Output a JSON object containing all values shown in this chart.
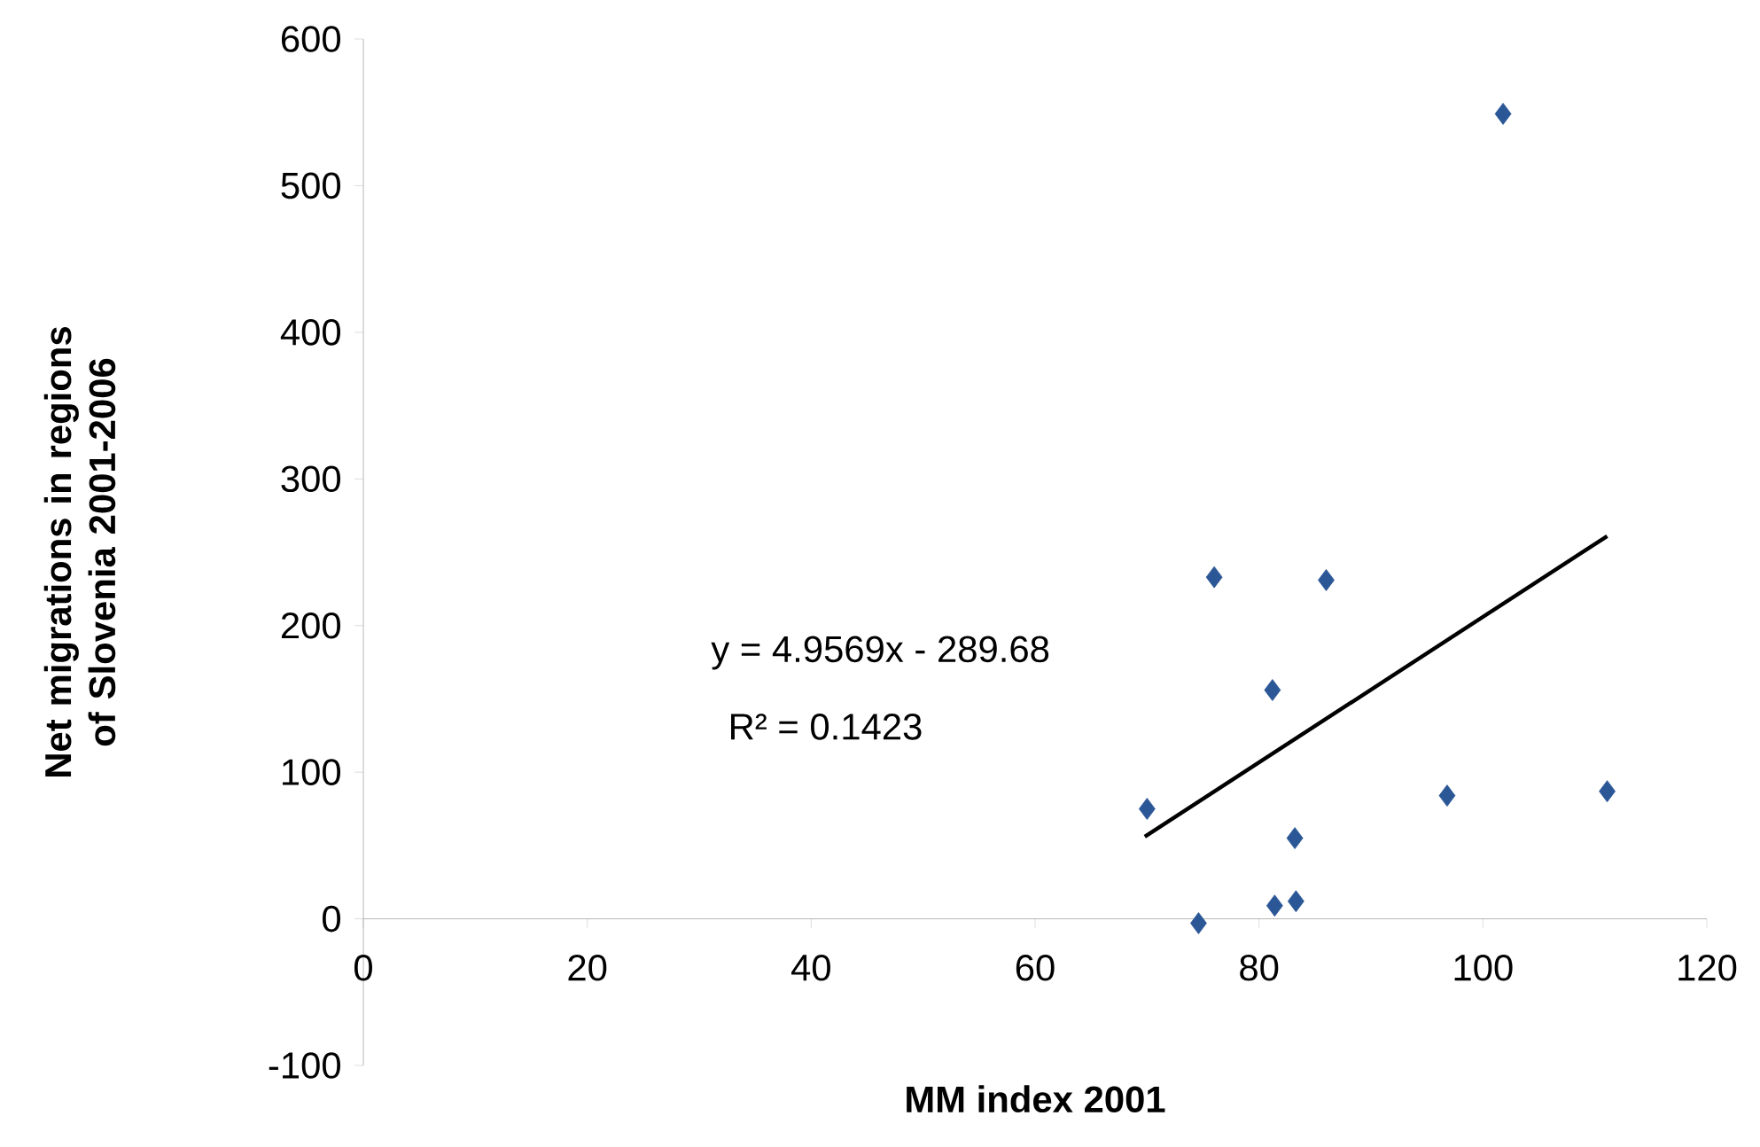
{
  "chart_data": {
    "type": "scatter",
    "xlabel": "MM index 2001",
    "ylabel": "Net migrations in regions of Slovenia 2001-2006",
    "xlim": [
      0,
      120
    ],
    "xticks": [
      0,
      20,
      40,
      60,
      80,
      100,
      120
    ],
    "ylim": [
      -100,
      600
    ],
    "yticks": [
      -100,
      0,
      100,
      200,
      300,
      400,
      500,
      600
    ],
    "marker": "diamond",
    "grid": false,
    "series": [
      {
        "color": "#2b5797",
        "x": [
          70.0,
          74.6,
          76.0,
          86.0,
          81.2,
          83.2,
          81.4,
          83.3,
          96.8,
          111.1,
          101.8
        ],
        "values": [
          75,
          -3,
          233,
          231,
          156,
          55,
          9,
          12,
          84,
          87,
          549
        ]
      },
      {
        "type": "line",
        "marker": "none",
        "color": "#000000",
        "x": [
          69.8,
          111.1
        ],
        "values": [
          56,
          261
        ]
      }
    ],
    "annotations": [
      "y = 4.9569x - 289.68",
      "R² = 0.1423"
    ]
  }
}
